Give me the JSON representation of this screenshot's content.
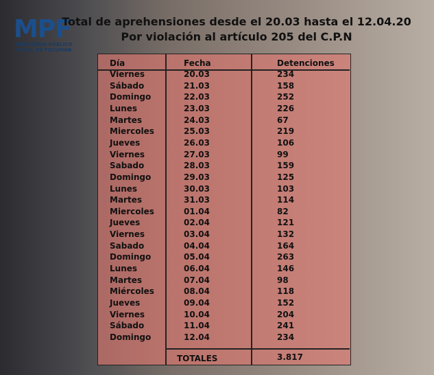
{
  "logo": {
    "name": "MPF",
    "line1": "MINISTERIO PÚBLICO",
    "line2": "FISCAL DE TUCUMÁN"
  },
  "header": {
    "title": "Total de aprehensiones desde el 20.03 hasta el 12.04.20",
    "subtitle": "Por violación al artículo 205 del C.P.N"
  },
  "table": {
    "columns": [
      "Día",
      "Fecha",
      "Detenciones"
    ],
    "rows": [
      [
        "Viernes",
        "20.03",
        234
      ],
      [
        "Sábado",
        "21.03",
        158
      ],
      [
        "Domingo",
        "22.03",
        252
      ],
      [
        "Lunes",
        "23.03",
        226
      ],
      [
        "Martes",
        "24.03",
        67
      ],
      [
        "Miercoles",
        "25.03",
        219
      ],
      [
        "Jueves",
        "26.03",
        106
      ],
      [
        "Viernes",
        "27.03",
        99
      ],
      [
        "Sabado",
        "28.03",
        159
      ],
      [
        "Domingo",
        "29.03",
        125
      ],
      [
        "Lunes",
        "30.03",
        103
      ],
      [
        "Martes",
        "31.03",
        114
      ],
      [
        "Miercoles",
        "01.04",
        82
      ],
      [
        "Jueves",
        "02.04",
        121
      ],
      [
        "Viernes",
        "03.04",
        132
      ],
      [
        "Sabado",
        "04.04",
        164
      ],
      [
        "Domingo",
        "05.04",
        263
      ],
      [
        "Lunes",
        "06.04",
        146
      ],
      [
        "Martes",
        "07.04",
        98
      ],
      [
        "Miércoles",
        "08.04",
        118
      ],
      [
        "Jueves",
        "09.04",
        152
      ],
      [
        "Viernes",
        "10.04",
        204
      ],
      [
        "Sábado",
        "11.04",
        241
      ],
      [
        "Domingo",
        "12.04",
        234
      ]
    ],
    "total_label": "TOTALES",
    "total": "3.817"
  }
}
